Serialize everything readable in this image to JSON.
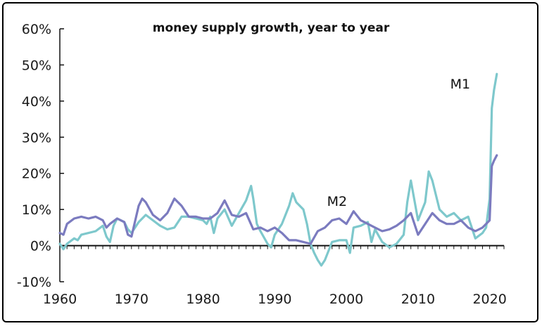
{
  "chart_data": {
    "type": "line",
    "title": "money supply growth, year to year",
    "xlabel": "",
    "ylabel": "",
    "xlim": [
      1960,
      2022
    ],
    "ylim": [
      -10,
      60
    ],
    "x_ticks": [
      "1960",
      "1970",
      "1980",
      "1990",
      "2000",
      "2010",
      "2020"
    ],
    "y_ticks": [
      "-10%",
      "0%",
      "10%",
      "20%",
      "30%",
      "40%",
      "50%",
      "60%"
    ],
    "grid": false,
    "series": [
      {
        "name": "M1",
        "color": "#7ec8cc",
        "points": [
          [
            1960,
            0.5
          ],
          [
            1960.5,
            -1
          ],
          [
            1961,
            0.5
          ],
          [
            1962,
            2
          ],
          [
            1962.5,
            1.5
          ],
          [
            1963,
            3
          ],
          [
            1964,
            3.5
          ],
          [
            1965,
            4
          ],
          [
            1966,
            5.5
          ],
          [
            1966.5,
            2.5
          ],
          [
            1967,
            1
          ],
          [
            1967.5,
            5.5
          ],
          [
            1968,
            7.5
          ],
          [
            1969,
            6.5
          ],
          [
            1969.5,
            4.5
          ],
          [
            1970,
            3.5
          ],
          [
            1971,
            6.5
          ],
          [
            1972,
            8.5
          ],
          [
            1973,
            7
          ],
          [
            1974,
            5.5
          ],
          [
            1975,
            4.5
          ],
          [
            1976,
            5
          ],
          [
            1977,
            8
          ],
          [
            1978,
            8
          ],
          [
            1979,
            7.5
          ],
          [
            1980,
            7
          ],
          [
            1980.5,
            6
          ],
          [
            1981,
            8
          ],
          [
            1981.5,
            3.5
          ],
          [
            1982,
            7.5
          ],
          [
            1983,
            10
          ],
          [
            1984,
            5.5
          ],
          [
            1985,
            9
          ],
          [
            1986,
            12.5
          ],
          [
            1986.7,
            16.5
          ],
          [
            1987,
            13
          ],
          [
            1987.5,
            6
          ],
          [
            1988,
            4
          ],
          [
            1989,
            0.5
          ],
          [
            1989.5,
            -0.5
          ],
          [
            1990,
            3
          ],
          [
            1991,
            6
          ],
          [
            1992,
            11
          ],
          [
            1992.5,
            14.5
          ],
          [
            1993,
            12
          ],
          [
            1994,
            10
          ],
          [
            1994.5,
            6
          ],
          [
            1995,
            0.5
          ],
          [
            1995.5,
            -2
          ],
          [
            1996,
            -4
          ],
          [
            1996.5,
            -5.5
          ],
          [
            1997,
            -4
          ],
          [
            1998,
            1
          ],
          [
            1999,
            1.5
          ],
          [
            2000,
            1.5
          ],
          [
            2000.5,
            -2
          ],
          [
            2001,
            5
          ],
          [
            2002,
            5.5
          ],
          [
            2003,
            6.5
          ],
          [
            2003.5,
            1
          ],
          [
            2004,
            4.5
          ],
          [
            2005,
            1
          ],
          [
            2006,
            -0.5
          ],
          [
            2007,
            0.5
          ],
          [
            2008,
            3
          ],
          [
            2008.5,
            12
          ],
          [
            2009,
            18
          ],
          [
            2010,
            7
          ],
          [
            2011,
            12
          ],
          [
            2011.5,
            20.5
          ],
          [
            2012,
            18
          ],
          [
            2013,
            10
          ],
          [
            2014,
            8
          ],
          [
            2015,
            9
          ],
          [
            2016,
            7
          ],
          [
            2017,
            8
          ],
          [
            2018,
            2
          ],
          [
            2019,
            3.5
          ],
          [
            2019.5,
            5
          ],
          [
            2020,
            13
          ],
          [
            2020.3,
            38
          ],
          [
            2020.6,
            43
          ],
          [
            2021,
            47.5
          ]
        ]
      },
      {
        "name": "M2",
        "color": "#7b7bbf",
        "points": [
          [
            1960,
            3.5
          ],
          [
            1960.5,
            3
          ],
          [
            1961,
            6
          ],
          [
            1962,
            7.5
          ],
          [
            1963,
            8
          ],
          [
            1964,
            7.5
          ],
          [
            1965,
            8
          ],
          [
            1966,
            7
          ],
          [
            1966.5,
            5
          ],
          [
            1967,
            6
          ],
          [
            1968,
            7.5
          ],
          [
            1969,
            6.5
          ],
          [
            1969.5,
            3
          ],
          [
            1970,
            2.5
          ],
          [
            1971,
            11
          ],
          [
            1971.5,
            13
          ],
          [
            1972,
            12
          ],
          [
            1973,
            8.5
          ],
          [
            1974,
            7
          ],
          [
            1975,
            9
          ],
          [
            1976,
            13
          ],
          [
            1977,
            11
          ],
          [
            1978,
            8
          ],
          [
            1979,
            8
          ],
          [
            1980,
            7.5
          ],
          [
            1981,
            7.5
          ],
          [
            1982,
            9
          ],
          [
            1983,
            12.5
          ],
          [
            1984,
            8.5
          ],
          [
            1985,
            8
          ],
          [
            1986,
            9
          ],
          [
            1987,
            4.5
          ],
          [
            1988,
            5
          ],
          [
            1989,
            4
          ],
          [
            1990,
            5
          ],
          [
            1991,
            3.5
          ],
          [
            1992,
            1.5
          ],
          [
            1993,
            1.5
          ],
          [
            1994,
            1
          ],
          [
            1995,
            0.5
          ],
          [
            1996,
            4
          ],
          [
            1997,
            5
          ],
          [
            1998,
            7
          ],
          [
            1999,
            7.5
          ],
          [
            2000,
            6
          ],
          [
            2001,
            9.5
          ],
          [
            2002,
            7
          ],
          [
            2003,
            6
          ],
          [
            2004,
            5
          ],
          [
            2005,
            4
          ],
          [
            2006,
            4.5
          ],
          [
            2007,
            5.5
          ],
          [
            2008,
            7
          ],
          [
            2009,
            9
          ],
          [
            2010,
            3
          ],
          [
            2011,
            6
          ],
          [
            2012,
            9
          ],
          [
            2013,
            7
          ],
          [
            2014,
            6
          ],
          [
            2015,
            6
          ],
          [
            2016,
            7
          ],
          [
            2017,
            5
          ],
          [
            2018,
            4
          ],
          [
            2019,
            5
          ],
          [
            2020,
            7
          ],
          [
            2020.3,
            22
          ],
          [
            2020.6,
            23.5
          ],
          [
            2021,
            25
          ]
        ]
      }
    ],
    "annotations": [
      {
        "text": "M1",
        "x": 2014.5,
        "y": 43.5
      },
      {
        "text": "M2",
        "x": 1997.3,
        "y": 11
      }
    ]
  }
}
